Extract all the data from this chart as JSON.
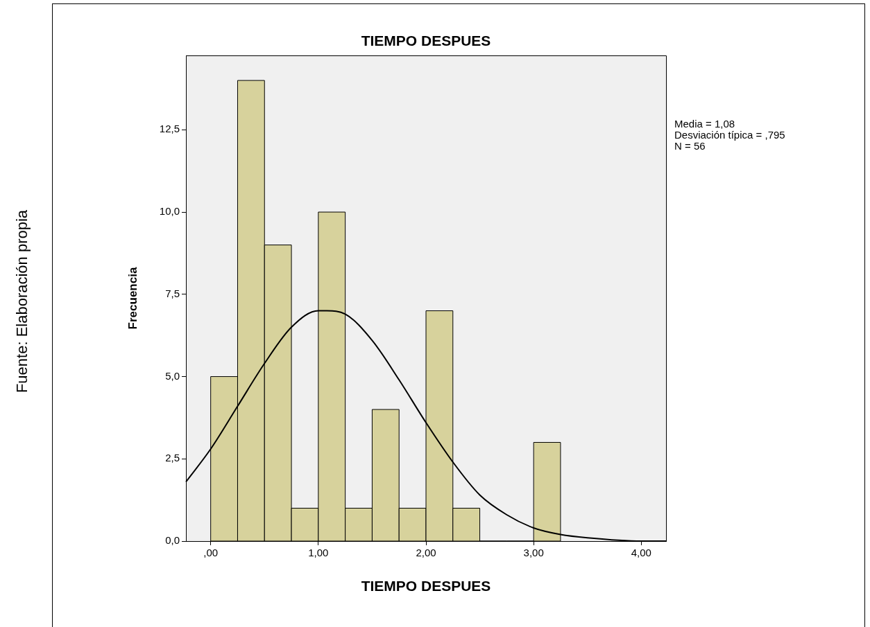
{
  "chart_data": {
    "type": "histogram",
    "title": "TIEMPO DESPUES",
    "xlabel": "TIEMPO DESPUES",
    "ylabel": "Frecuencia",
    "bins": [
      0,
      0.25,
      0.5,
      0.75,
      1,
      1.25,
      1.5,
      1.75,
      2,
      2.25,
      2.5,
      2.75,
      3,
      3.25
    ],
    "values": [
      5,
      14,
      9,
      1,
      10,
      1,
      4,
      1,
      7,
      1,
      0,
      0,
      3
    ],
    "color": "#d7d29c",
    "series": [
      {
        "type": "line",
        "color": "#000000",
        "x": [
          -0.23,
          0,
          0.25,
          0.5,
          0.75,
          1,
          1.08,
          1.25,
          1.5,
          1.75,
          2,
          2.25,
          2.5,
          2.75,
          3,
          3.25,
          3.5,
          4,
          4.23
        ],
        "values": [
          1.8,
          2.8,
          4.1,
          5.4,
          6.5,
          7.0,
          7.0,
          6.9,
          6.1,
          4.9,
          3.6,
          2.4,
          1.4,
          0.8,
          0.4,
          0.2,
          0.1,
          0,
          0
        ]
      }
    ],
    "marker": "none",
    "line_style": "solid",
    "grid": false,
    "legend": false,
    "xlim": [
      -0.23,
      4.23
    ],
    "xticks": [
      {
        "value": 0,
        "label": ",00"
      },
      {
        "value": 1,
        "label": "1,00"
      },
      {
        "value": 2,
        "label": "2,00"
      },
      {
        "value": 3,
        "label": "3,00"
      },
      {
        "value": 4,
        "label": "4,00"
      }
    ],
    "ylim": [
      0,
      14.76
    ],
    "yticks": [
      {
        "value": 0,
        "label": "0,0"
      },
      {
        "value": 2.5,
        "label": "2,5"
      },
      {
        "value": 5,
        "label": "5,0"
      },
      {
        "value": 7.5,
        "label": "7,5"
      },
      {
        "value": 10,
        "label": "10,0"
      },
      {
        "value": 12.5,
        "label": "12,5"
      }
    ],
    "annotations": [
      "Media = 1,08",
      "Desviación típica = ,795",
      "N = 56",
      "Fuente: Elaboración propia"
    ]
  }
}
